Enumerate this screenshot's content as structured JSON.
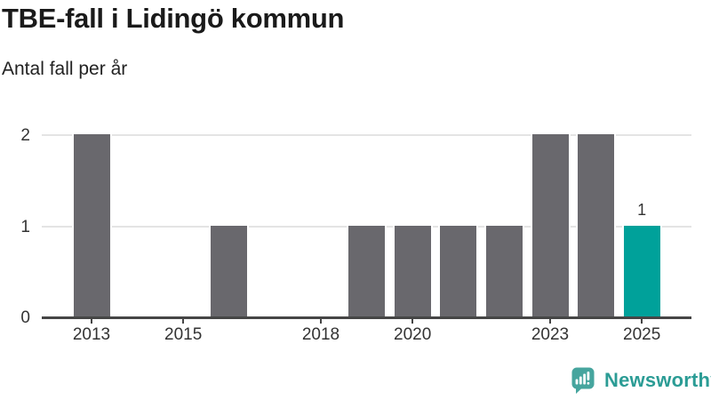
{
  "title": "TBE-fall i Lidingö kommun",
  "subtitle": "Antal fall per år",
  "chart_data": {
    "type": "bar",
    "title": "TBE-fall i Lidingö kommun",
    "subtitle": "Antal fall per år",
    "categories": [
      2013,
      2014,
      2015,
      2016,
      2017,
      2018,
      2019,
      2020,
      2021,
      2022,
      2023,
      2024,
      2025
    ],
    "values": [
      2,
      0,
      0,
      1,
      0,
      0,
      1,
      1,
      1,
      1,
      2,
      2,
      1
    ],
    "xlabel": "",
    "ylabel": "Antal fall per år",
    "ylim": [
      0,
      2
    ],
    "yticks": [
      0,
      1,
      2
    ],
    "x_tick_labels": [
      2013,
      2015,
      2018,
      2020,
      2023,
      2025
    ],
    "grid": "horizontal",
    "legend": "none",
    "bar_color": "#69686d",
    "highlight": {
      "category": 2025,
      "color": "#00a19a",
      "value_label": "1"
    }
  },
  "colors": {
    "background": "#ffffff",
    "axis": "#464646",
    "grid": "#e4e4e4",
    "tick_text": "#333333",
    "title_text": "#1a1a1a",
    "brand_teal": "#2b9c95",
    "brand_icon_teal": "#46a59e"
  },
  "footer": {
    "brand": "Newsworthy",
    "icon": "newsworthy-bars-speech-bubble-icon"
  }
}
